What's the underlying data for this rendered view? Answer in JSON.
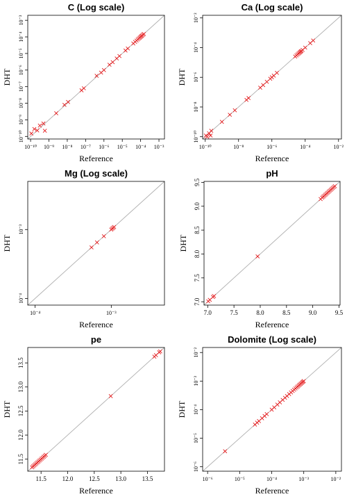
{
  "colors": {
    "points": "#e41a1c",
    "identity_line": "#b0b0b0",
    "frame": "#000000"
  },
  "chart_data": [
    {
      "type": "scatter",
      "title": "C (Log scale)",
      "xlabel": "Reference",
      "ylabel": "DHT",
      "scale": "log",
      "xlim": [
        7e-11,
        0.002
      ],
      "ylim": [
        7e-11,
        0.002
      ],
      "xticks": [
        1e-10,
        1e-09,
        1e-08,
        1e-07,
        1e-06,
        1e-05,
        0.0001,
        0.001
      ],
      "yticks": [
        1e-10,
        1e-09,
        1e-08,
        1e-07,
        1e-06,
        1e-05,
        0.0001,
        0.001
      ],
      "xtick_labels": [
        "10⁻¹⁰",
        "10⁻⁹",
        "10⁻⁸",
        "10⁻⁷",
        "10⁻⁶",
        "10⁻⁵",
        "10⁻⁴",
        "10⁻³"
      ],
      "ytick_labels": [
        "10⁻¹⁰",
        "10⁻⁹",
        "10⁻⁸",
        "10⁻⁷",
        "10⁻⁶",
        "10⁻⁵",
        "10⁻⁴",
        "10⁻³"
      ],
      "identity_line": true,
      "points": [
        [
          1.1e-10,
          1.5e-10
        ],
        [
          1.6e-10,
          2.8e-10
        ],
        [
          2.3e-10,
          2.3e-10
        ],
        [
          3.2e-10,
          4.5e-10
        ],
        [
          5e-10,
          6e-10
        ],
        [
          6e-10,
          2.2e-10
        ],
        [
          2.5e-09,
          2.5e-09
        ],
        [
          7e-09,
          8e-09
        ],
        [
          1.1e-08,
          1.2e-08
        ],
        [
          6e-08,
          6e-08
        ],
        [
          8e-08,
          8e-08
        ],
        [
          4e-07,
          4.5e-07
        ],
        [
          7e-07,
          7e-07
        ],
        [
          1e-06,
          1e-06
        ],
        [
          2e-06,
          2.1e-06
        ],
        [
          3e-06,
          3e-06
        ],
        [
          5e-06,
          5e-06
        ],
        [
          7e-06,
          7e-06
        ],
        [
          1.5e-05,
          1.5e-05
        ],
        [
          2e-05,
          2e-05
        ],
        [
          4e-05,
          4e-05
        ],
        [
          5e-05,
          5e-05
        ],
        [
          6e-05,
          6e-05
        ],
        [
          7e-05,
          7e-05
        ],
        [
          8e-05,
          8e-05
        ],
        [
          9e-05,
          9e-05
        ],
        [
          0.0001,
          0.0001
        ],
        [
          0.00011,
          0.00011
        ],
        [
          0.00012,
          0.00012
        ],
        [
          0.000135,
          0.000135
        ],
        [
          0.00015,
          0.00015
        ]
      ]
    },
    {
      "type": "scatter",
      "title": "Ca (Log scale)",
      "xlabel": "Reference",
      "ylabel": "DHT",
      "scale": "log",
      "xlim": [
        7e-11,
        0.015
      ],
      "ylim": [
        7e-11,
        0.015
      ],
      "xticks": [
        1e-10,
        1e-08,
        1e-06,
        0.0001,
        0.01
      ],
      "yticks": [
        1e-10,
        1e-08,
        1e-06,
        0.0001,
        0.01
      ],
      "xtick_labels": [
        "10⁻¹⁰",
        "10⁻⁸",
        "10⁻⁶",
        "10⁻⁴",
        "10⁻²"
      ],
      "ytick_labels": [
        "10⁻¹⁰",
        "10⁻⁸",
        "10⁻⁶",
        "10⁻⁴",
        "10⁻²"
      ],
      "identity_line": true,
      "points": [
        [
          1.1e-10,
          1.2e-10
        ],
        [
          1.3e-10,
          1e-10
        ],
        [
          1.7e-10,
          1.7e-10
        ],
        [
          2.1e-10,
          1.2e-10
        ],
        [
          2.3e-10,
          2.5e-10
        ],
        [
          1e-09,
          1e-09
        ],
        [
          3e-09,
          3e-09
        ],
        [
          6e-09,
          6e-09
        ],
        [
          3e-08,
          3e-08
        ],
        [
          4e-08,
          4e-08
        ],
        [
          2e-07,
          2e-07
        ],
        [
          3e-07,
          3e-07
        ],
        [
          5e-07,
          5e-07
        ],
        [
          8e-07,
          8e-07
        ],
        [
          1e-06,
          1e-06
        ],
        [
          1.3e-06,
          1.3e-06
        ],
        [
          2e-06,
          2e-06
        ],
        [
          2.5e-05,
          2.5e-05
        ],
        [
          3e-05,
          3e-05
        ],
        [
          3.5e-05,
          3.5e-05
        ],
        [
          4e-05,
          4e-05
        ],
        [
          4.5e-05,
          4.5e-05
        ],
        [
          5e-05,
          5e-05
        ],
        [
          5.5e-05,
          5.5e-05
        ],
        [
          6e-05,
          6e-05
        ],
        [
          7e-05,
          7e-05
        ],
        [
          0.0001,
          0.0001
        ],
        [
          0.0002,
          0.0002
        ],
        [
          0.0003,
          0.0003
        ]
      ]
    },
    {
      "type": "scatter",
      "title": "Mg (Log scale)",
      "xlabel": "Reference",
      "ylabel": "DHT",
      "scale": "log",
      "xlim": [
        8e-05,
        0.005
      ],
      "ylim": [
        8e-05,
        0.005
      ],
      "xticks": [
        0.0001,
        0.001
      ],
      "yticks": [
        0.0001,
        0.001
      ],
      "xtick_labels": [
        "10⁻⁴",
        "10⁻³"
      ],
      "ytick_labels": [
        "10⁻⁴",
        "10⁻³"
      ],
      "identity_line": true,
      "points": [
        [
          0.00055,
          0.00055
        ],
        [
          0.00065,
          0.00065
        ],
        [
          0.0008,
          0.0008
        ],
        [
          0.001,
          0.001
        ],
        [
          0.00103,
          0.00103
        ],
        [
          0.00106,
          0.00106
        ],
        [
          0.00109,
          0.00109
        ]
      ]
    },
    {
      "type": "scatter",
      "title": "pH",
      "xlabel": "Reference",
      "ylabel": "DHT",
      "scale": "linear",
      "xlim": [
        6.93,
        9.52
      ],
      "ylim": [
        6.93,
        9.52
      ],
      "xticks": [
        7.0,
        7.5,
        8.0,
        8.5,
        9.0,
        9.5
      ],
      "yticks": [
        7.0,
        7.5,
        8.0,
        8.5,
        9.0,
        9.5
      ],
      "xtick_labels": [
        "7.0",
        "7.5",
        "8.0",
        "8.5",
        "9.0",
        "9.5"
      ],
      "ytick_labels": [
        "7.0",
        "7.5",
        "8.0",
        "8.5",
        "9.0",
        "9.5"
      ],
      "identity_line": true,
      "points": [
        [
          7.01,
          7.01
        ],
        [
          7.04,
          7.04
        ],
        [
          7.1,
          7.1
        ],
        [
          7.12,
          7.12
        ],
        [
          7.95,
          7.95
        ],
        [
          9.15,
          9.15
        ],
        [
          9.18,
          9.18
        ],
        [
          9.2,
          9.2
        ],
        [
          9.22,
          9.22
        ],
        [
          9.24,
          9.24
        ],
        [
          9.26,
          9.26
        ],
        [
          9.28,
          9.28
        ],
        [
          9.3,
          9.3
        ],
        [
          9.32,
          9.32
        ],
        [
          9.34,
          9.34
        ],
        [
          9.36,
          9.36
        ],
        [
          9.38,
          9.38
        ],
        [
          9.4,
          9.4
        ],
        [
          9.42,
          9.42
        ]
      ]
    },
    {
      "type": "scatter",
      "title": "pe",
      "xlabel": "Reference",
      "ylabel": "DHT",
      "scale": "linear",
      "xlim": [
        11.25,
        13.82
      ],
      "ylim": [
        11.25,
        13.82
      ],
      "xticks": [
        11.5,
        12.0,
        12.5,
        13.0,
        13.5
      ],
      "yticks": [
        11.5,
        12.0,
        12.5,
        13.0,
        13.5
      ],
      "xtick_labels": [
        "11.5",
        "12.0",
        "12.5",
        "13.0",
        "13.5"
      ],
      "ytick_labels": [
        "11.5",
        "12.0",
        "12.5",
        "13.0",
        "13.5"
      ],
      "identity_line": true,
      "points": [
        [
          11.33,
          11.33
        ],
        [
          11.35,
          11.35
        ],
        [
          11.37,
          11.37
        ],
        [
          11.39,
          11.39
        ],
        [
          11.41,
          11.41
        ],
        [
          11.43,
          11.43
        ],
        [
          11.45,
          11.45
        ],
        [
          11.47,
          11.47
        ],
        [
          11.49,
          11.49
        ],
        [
          11.51,
          11.51
        ],
        [
          11.53,
          11.53
        ],
        [
          11.55,
          11.55
        ],
        [
          11.57,
          11.57
        ],
        [
          11.59,
          11.59
        ],
        [
          12.81,
          12.81
        ],
        [
          13.63,
          13.63
        ],
        [
          13.66,
          13.66
        ],
        [
          13.72,
          13.72
        ],
        [
          13.74,
          13.74
        ]
      ]
    },
    {
      "type": "scatter",
      "title": "Dolomite (Log scale)",
      "xlabel": "Reference",
      "ylabel": "DHT",
      "scale": "log",
      "xlim": [
        7e-07,
        0.015
      ],
      "ylim": [
        7e-07,
        0.015
      ],
      "xticks": [
        1e-06,
        1e-05,
        0.0001,
        0.001,
        0.01
      ],
      "yticks": [
        1e-06,
        1e-05,
        0.0001,
        0.001,
        0.01
      ],
      "xtick_labels": [
        "10⁻⁶",
        "10⁻⁵",
        "10⁻⁴",
        "10⁻³",
        "10⁻²"
      ],
      "ytick_labels": [
        "10⁻⁶",
        "10⁻⁵",
        "10⁻⁴",
        "10⁻³",
        "10⁻²"
      ],
      "identity_line": true,
      "points": [
        [
          3.5e-06,
          3.5e-06
        ],
        [
          3e-05,
          3e-05
        ],
        [
          3.5e-05,
          3.5e-05
        ],
        [
          4e-05,
          4e-05
        ],
        [
          5e-05,
          5e-05
        ],
        [
          6e-05,
          6e-05
        ],
        [
          7e-05,
          7e-05
        ],
        [
          0.0001,
          0.0001
        ],
        [
          0.00012,
          0.00012
        ],
        [
          0.00015,
          0.00015
        ],
        [
          0.00018,
          0.00018
        ],
        [
          0.00022,
          0.00022
        ],
        [
          0.00026,
          0.00026
        ],
        [
          0.0003,
          0.0003
        ],
        [
          0.00035,
          0.00035
        ],
        [
          0.0004,
          0.0004
        ],
        [
          0.00045,
          0.00045
        ],
        [
          0.0005,
          0.0005
        ],
        [
          0.00055,
          0.00055
        ],
        [
          0.0006,
          0.0006
        ],
        [
          0.00065,
          0.00065
        ],
        [
          0.0007,
          0.0007
        ],
        [
          0.00075,
          0.00075
        ],
        [
          0.0008,
          0.0008
        ],
        [
          0.00085,
          0.00085
        ],
        [
          0.0009,
          0.0009
        ],
        [
          0.00095,
          0.00095
        ],
        [
          0.001,
          0.001
        ]
      ]
    }
  ]
}
